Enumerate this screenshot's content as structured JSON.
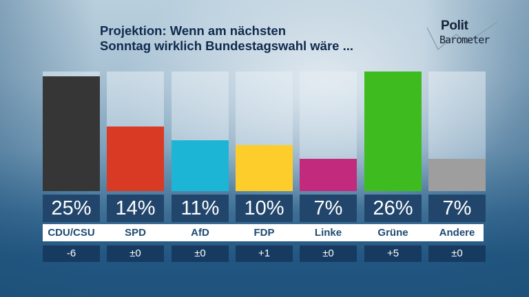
{
  "header": {
    "title_line1": "Projektion: Wenn am nächsten",
    "title_line2": "Sonntag wirklich Bundestagswahl wäre ..."
  },
  "logo": {
    "word1": "Polit",
    "word2": "Barometer"
  },
  "chart_data": {
    "type": "bar",
    "title": "Projektion: Wenn am nächsten Sonntag wirklich Bundestagswahl wäre ...",
    "xlabel": "",
    "ylabel": "",
    "ylim": [
      0,
      26
    ],
    "grid": false,
    "categories": [
      "CDU/CSU",
      "SPD",
      "AfD",
      "FDP",
      "Linke",
      "Grüne",
      "Andere"
    ],
    "values": [
      25,
      14,
      11,
      10,
      7,
      26,
      7
    ],
    "value_labels": [
      "25%",
      "14%",
      "11%",
      "10%",
      "7%",
      "26%",
      "7%"
    ],
    "changes": [
      "-6",
      "±0",
      "±0",
      "+1",
      "±0",
      "+5",
      "±0"
    ],
    "colors": [
      "#363636",
      "#d83a24",
      "#1db5d6",
      "#fdcd2b",
      "#c12a7d",
      "#3dbb1f",
      "#9e9e9e"
    ],
    "unit": "%"
  }
}
